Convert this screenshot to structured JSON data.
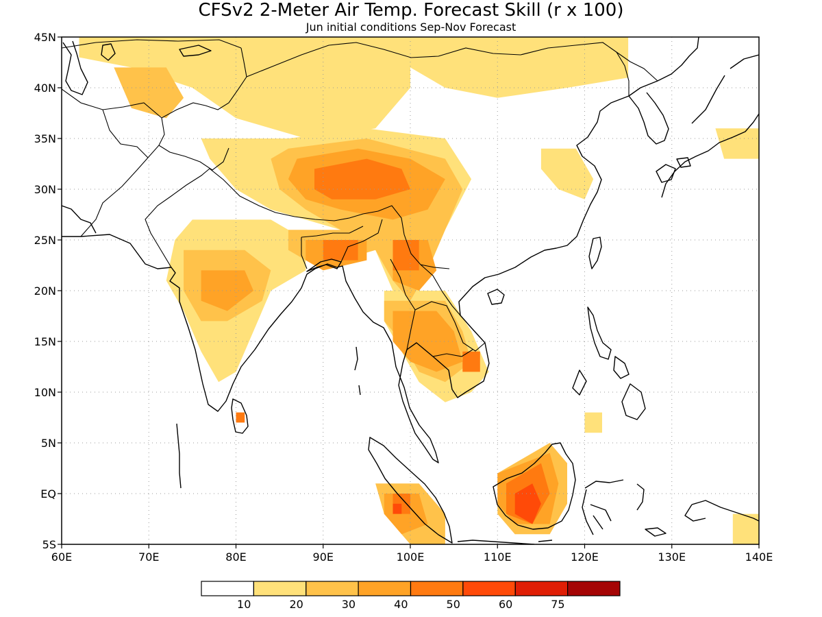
{
  "title": "CFSv2 2-Meter Air Temp. Forecast Skill (r x 100)",
  "subtitle": "Jun initial conditions  Sep-Nov Forecast",
  "map": {
    "lon_range": [
      60,
      140
    ],
    "lat_range": [
      -5,
      45
    ],
    "lon_ticks": [
      {
        "value": 60,
        "label": "60E"
      },
      {
        "value": 70,
        "label": "70E"
      },
      {
        "value": 80,
        "label": "80E"
      },
      {
        "value": 90,
        "label": "90E"
      },
      {
        "value": 100,
        "label": "100E"
      },
      {
        "value": 110,
        "label": "110E"
      },
      {
        "value": 120,
        "label": "120E"
      },
      {
        "value": 130,
        "label": "130E"
      },
      {
        "value": 140,
        "label": "140E"
      }
    ],
    "lat_ticks": [
      {
        "value": 45,
        "label": "45N"
      },
      {
        "value": 40,
        "label": "40N"
      },
      {
        "value": 35,
        "label": "35N"
      },
      {
        "value": 30,
        "label": "30N"
      },
      {
        "value": 25,
        "label": "25N"
      },
      {
        "value": 20,
        "label": "20N"
      },
      {
        "value": 15,
        "label": "15N"
      },
      {
        "value": 10,
        "label": "10N"
      },
      {
        "value": 5,
        "label": "5N"
      },
      {
        "value": 0,
        "label": "EQ"
      },
      {
        "value": -5,
        "label": "5S"
      }
    ],
    "grid": "dotted"
  },
  "colorbar": {
    "colors": [
      "#ffffff",
      "#ffe17a",
      "#ffc24a",
      "#ffa326",
      "#ff7a10",
      "#ff4a08",
      "#e01e05",
      "#a50505"
    ],
    "labels": [
      "10",
      "20",
      "30",
      "40",
      "50",
      "60",
      "75"
    ]
  },
  "skill_regions": [
    {
      "level": 1,
      "points": [
        [
          62,
          45
        ],
        [
          100,
          45
        ],
        [
          100,
          40
        ],
        [
          96,
          36
        ],
        [
          88,
          35
        ],
        [
          80,
          37
        ],
        [
          75,
          40
        ],
        [
          68,
          42
        ],
        [
          62,
          43
        ]
      ]
    },
    {
      "level": 1,
      "points": [
        [
          100,
          45
        ],
        [
          125,
          45
        ],
        [
          125,
          41
        ],
        [
          118,
          40
        ],
        [
          110,
          39
        ],
        [
          104,
          40
        ],
        [
          100,
          42
        ]
      ]
    },
    {
      "level": 1,
      "points": [
        [
          76,
          35
        ],
        [
          86,
          35
        ],
        [
          95,
          36
        ],
        [
          104,
          35
        ],
        [
          107,
          31
        ],
        [
          104,
          26
        ],
        [
          102,
          22
        ],
        [
          100,
          18
        ],
        [
          98,
          20
        ],
        [
          96,
          24
        ],
        [
          92,
          26
        ],
        [
          88,
          27
        ],
        [
          84,
          28
        ],
        [
          80,
          30
        ],
        [
          77,
          33
        ]
      ]
    },
    {
      "level": 1,
      "points": [
        [
          75,
          27
        ],
        [
          84,
          27
        ],
        [
          88,
          25
        ],
        [
          88,
          22
        ],
        [
          84,
          20
        ],
        [
          82,
          16
        ],
        [
          80,
          12
        ],
        [
          78,
          11
        ],
        [
          76,
          14
        ],
        [
          74,
          18
        ],
        [
          72,
          21
        ],
        [
          73,
          25
        ]
      ]
    },
    {
      "level": 1,
      "points": [
        [
          97,
          20
        ],
        [
          104,
          20
        ],
        [
          107,
          16
        ],
        [
          109,
          12
        ],
        [
          107,
          10
        ],
        [
          104,
          9
        ],
        [
          101,
          11
        ],
        [
          99,
          14
        ],
        [
          97,
          17
        ]
      ]
    },
    {
      "level": 1,
      "points": [
        [
          115,
          34
        ],
        [
          119,
          34
        ],
        [
          121,
          31
        ],
        [
          120,
          29
        ],
        [
          117,
          30
        ],
        [
          115,
          32
        ]
      ]
    },
    {
      "level": 1,
      "points": [
        [
          135,
          36
        ],
        [
          140,
          36
        ],
        [
          140,
          33
        ],
        [
          136,
          33
        ]
      ]
    },
    {
      "level": 1,
      "points": [
        [
          137,
          -2
        ],
        [
          140,
          -2
        ],
        [
          140,
          -5
        ],
        [
          137,
          -5
        ]
      ]
    },
    {
      "level": 1,
      "points": [
        [
          120,
          8
        ],
        [
          122,
          8
        ],
        [
          122,
          6
        ],
        [
          120,
          6
        ]
      ]
    },
    {
      "level": 2,
      "points": [
        [
          86,
          34
        ],
        [
          95,
          35
        ],
        [
          104,
          33
        ],
        [
          106,
          30
        ],
        [
          104,
          26
        ],
        [
          102,
          22
        ],
        [
          100,
          19
        ],
        [
          98,
          21
        ],
        [
          96,
          24
        ],
        [
          92,
          26
        ],
        [
          88,
          28
        ],
        [
          85,
          30
        ],
        [
          84,
          33
        ]
      ]
    },
    {
      "level": 2,
      "points": [
        [
          74,
          24
        ],
        [
          81,
          24
        ],
        [
          84,
          22
        ],
        [
          83,
          19
        ],
        [
          79,
          17
        ],
        [
          76,
          17
        ],
        [
          74,
          20
        ]
      ]
    },
    {
      "level": 2,
      "points": [
        [
          66,
          42
        ],
        [
          72,
          42
        ],
        [
          74,
          39
        ],
        [
          72,
          37
        ],
        [
          68,
          38
        ]
      ]
    },
    {
      "level": 2,
      "points": [
        [
          86,
          26
        ],
        [
          95,
          26
        ],
        [
          96,
          24
        ],
        [
          92,
          23
        ],
        [
          88,
          23
        ],
        [
          86,
          24
        ]
      ]
    },
    {
      "level": 2,
      "points": [
        [
          97,
          19
        ],
        [
          104,
          19
        ],
        [
          106,
          16
        ],
        [
          107,
          13
        ],
        [
          104,
          11
        ],
        [
          101,
          12
        ],
        [
          99,
          15
        ],
        [
          97,
          17
        ]
      ]
    },
    {
      "level": 2,
      "points": [
        [
          96,
          1
        ],
        [
          101,
          1
        ],
        [
          104,
          -2
        ],
        [
          104,
          -5
        ],
        [
          100,
          -5
        ],
        [
          97,
          -2
        ]
      ]
    },
    {
      "level": 2,
      "points": [
        [
          110,
          2
        ],
        [
          116,
          5
        ],
        [
          118,
          3
        ],
        [
          118,
          -1
        ],
        [
          116,
          -4
        ],
        [
          112,
          -4
        ],
        [
          110,
          -2
        ]
      ]
    },
    {
      "level": 3,
      "points": [
        [
          87,
          33
        ],
        [
          94,
          34
        ],
        [
          100,
          33
        ],
        [
          104,
          31
        ],
        [
          102,
          28
        ],
        [
          98,
          27
        ],
        [
          92,
          28
        ],
        [
          88,
          29
        ],
        [
          86,
          31
        ]
      ]
    },
    {
      "level": 3,
      "points": [
        [
          98,
          18
        ],
        [
          103,
          18
        ],
        [
          105,
          16
        ],
        [
          106,
          13
        ],
        [
          103,
          12
        ],
        [
          100,
          13
        ],
        [
          98,
          15
        ]
      ]
    },
    {
      "level": 3,
      "points": [
        [
          88,
          25
        ],
        [
          95,
          25
        ],
        [
          95,
          23
        ],
        [
          90,
          22
        ],
        [
          88,
          23
        ]
      ]
    },
    {
      "level": 3,
      "points": [
        [
          98,
          25
        ],
        [
          102,
          25
        ],
        [
          103,
          22
        ],
        [
          101,
          20
        ],
        [
          98,
          21
        ]
      ]
    },
    {
      "level": 3,
      "points": [
        [
          76,
          22
        ],
        [
          81,
          22
        ],
        [
          82,
          20
        ],
        [
          79,
          18
        ],
        [
          76,
          19
        ]
      ]
    },
    {
      "level": 3,
      "points": [
        [
          110,
          2
        ],
        [
          116,
          4
        ],
        [
          117,
          1
        ],
        [
          116,
          -3
        ],
        [
          112,
          -3
        ],
        [
          110,
          -1
        ]
      ]
    },
    {
      "level": 3,
      "points": [
        [
          97,
          0
        ],
        [
          101,
          0
        ],
        [
          102,
          -3
        ],
        [
          99,
          -4
        ],
        [
          97,
          -2
        ]
      ]
    },
    {
      "level": 4,
      "points": [
        [
          89,
          32
        ],
        [
          95,
          33
        ],
        [
          99,
          32
        ],
        [
          100,
          30
        ],
        [
          96,
          29
        ],
        [
          91,
          29
        ],
        [
          89,
          30
        ]
      ]
    },
    {
      "level": 4,
      "points": [
        [
          98,
          25
        ],
        [
          101,
          25
        ],
        [
          101,
          22
        ],
        [
          98,
          22
        ]
      ]
    },
    {
      "level": 4,
      "points": [
        [
          90,
          25
        ],
        [
          94,
          25
        ],
        [
          94,
          23
        ],
        [
          90,
          23
        ]
      ]
    },
    {
      "level": 4,
      "points": [
        [
          111,
          1
        ],
        [
          115,
          3
        ],
        [
          116,
          0
        ],
        [
          114,
          -3
        ],
        [
          111,
          -2
        ]
      ]
    },
    {
      "level": 4,
      "points": [
        [
          98,
          0
        ],
        [
          100,
          0
        ],
        [
          100,
          -2
        ],
        [
          98,
          -2
        ]
      ]
    },
    {
      "level": 4,
      "points": [
        [
          106,
          14
        ],
        [
          108,
          14
        ],
        [
          108,
          12
        ],
        [
          106,
          12
        ]
      ]
    },
    {
      "level": 4,
      "points": [
        [
          80,
          8
        ],
        [
          81,
          8
        ],
        [
          81,
          7
        ],
        [
          80,
          7
        ]
      ]
    },
    {
      "level": 5,
      "points": [
        [
          112,
          0
        ],
        [
          114,
          1
        ],
        [
          115,
          -1
        ],
        [
          114,
          -3
        ],
        [
          112,
          -2
        ]
      ]
    },
    {
      "level": 5,
      "points": [
        [
          98,
          -1
        ],
        [
          99,
          -1
        ],
        [
          99,
          -2
        ],
        [
          98,
          -2
        ]
      ]
    }
  ]
}
